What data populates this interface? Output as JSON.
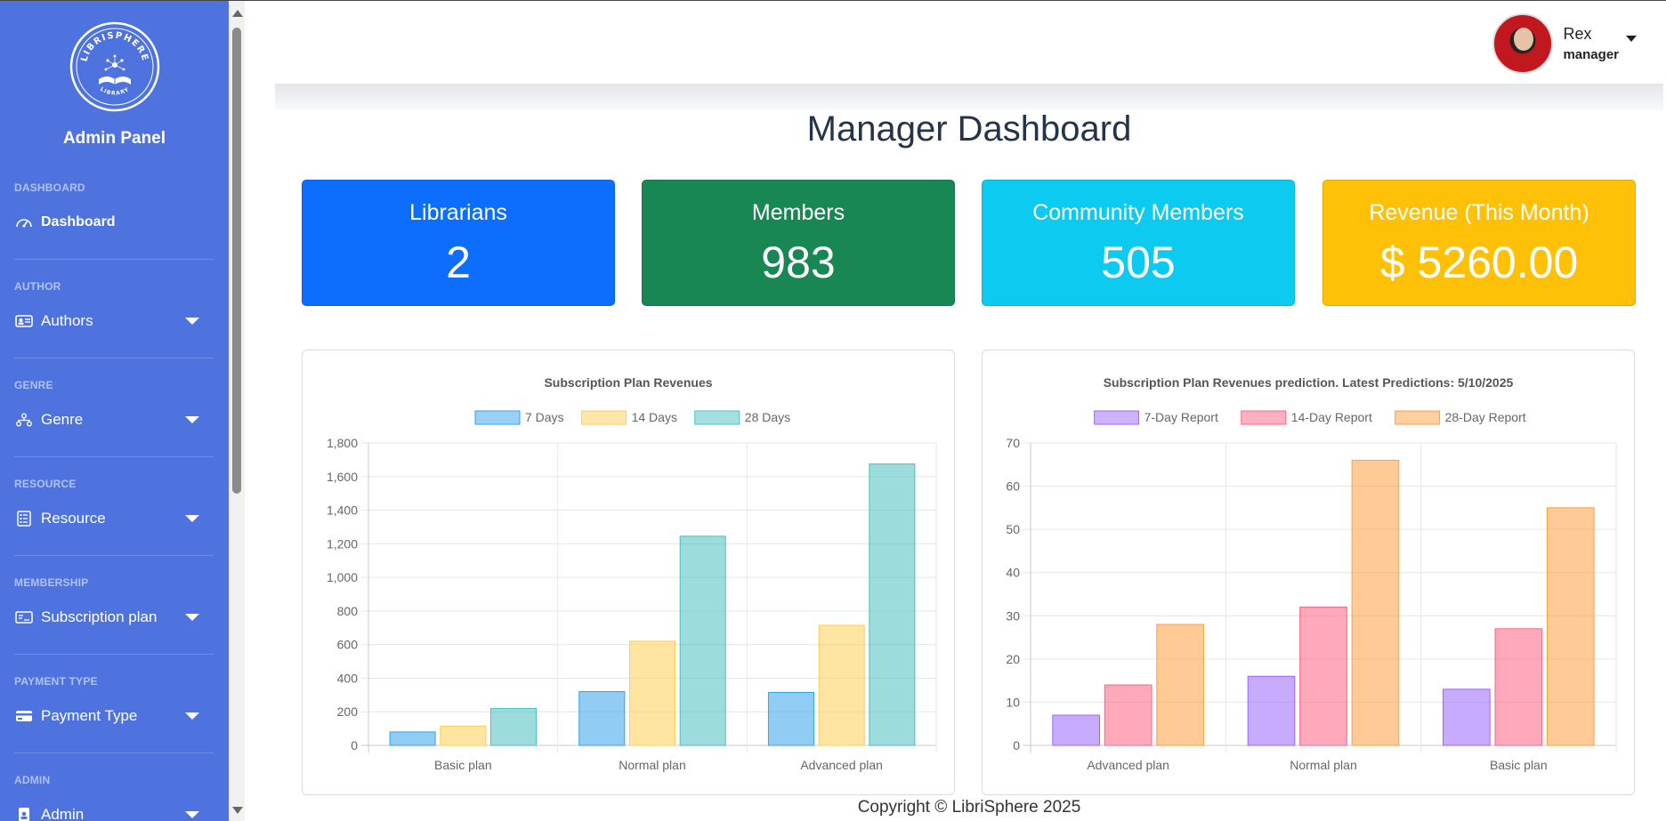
{
  "sidebar": {
    "title": "Admin Panel",
    "logo_text_top": "LIBRISPHERE",
    "logo_text_bottom": "LIBRARY",
    "sections": [
      {
        "heading": "DASHBOARD",
        "item": "Dashboard",
        "icon": "speedometer-icon",
        "active": true
      },
      {
        "heading": "AUTHOR",
        "item": "Authors",
        "icon": "id-card-icon"
      },
      {
        "heading": "GENRE",
        "item": "Genre",
        "icon": "diagram-icon"
      },
      {
        "heading": "RESOURCE",
        "item": "Resource",
        "icon": "list-document-icon"
      },
      {
        "heading": "MEMBERSHIP",
        "item": "Subscription plan",
        "icon": "membership-card-icon"
      },
      {
        "heading": "PAYMENT TYPE",
        "item": "Payment Type",
        "icon": "credit-card-icon"
      },
      {
        "heading": "ADMIN",
        "item": "Admin",
        "icon": "person-badge-icon"
      }
    ]
  },
  "user": {
    "name": "Rex",
    "role": "manager"
  },
  "page": {
    "title": "Manager Dashboard"
  },
  "cards": [
    {
      "title": "Librarians",
      "value": "2",
      "color": "#0d6efd"
    },
    {
      "title": "Members",
      "value": "983",
      "color": "#198754"
    },
    {
      "title": "Community Members",
      "value": "505",
      "color": "#0dcaf0"
    },
    {
      "title": "Revenue (This Month)",
      "value": "$ 5260.00",
      "color": "#ffc107"
    }
  ],
  "chart_data": [
    {
      "type": "bar",
      "title": "Subscription Plan Revenues",
      "categories": [
        "Basic plan",
        "Normal plan",
        "Advanced plan"
      ],
      "series": [
        {
          "name": "7 Days",
          "values": [
            80,
            320,
            315
          ],
          "color": "#36a2eb"
        },
        {
          "name": "14 Days",
          "values": [
            115,
            620,
            715
          ],
          "color": "#ffcd56"
        },
        {
          "name": "28 Days",
          "values": [
            220,
            1245,
            1675
          ],
          "color": "#4bc0c0"
        }
      ],
      "ylim": [
        0,
        1800
      ],
      "yticks": [
        "0",
        "200",
        "400",
        "600",
        "800",
        "1,000",
        "1,200",
        "1,400",
        "1,600",
        "1,800"
      ],
      "legend": "top",
      "grid": true
    },
    {
      "type": "bar",
      "title": "Subscription Plan Revenues prediction. Latest Predictions: 5/10/2025",
      "categories": [
        "Advanced plan",
        "Normal plan",
        "Basic plan"
      ],
      "series": [
        {
          "name": "7-Day Report",
          "values": [
            7,
            16,
            13
          ],
          "color": "#9966ff"
        },
        {
          "name": "14-Day Report",
          "values": [
            14,
            32,
            27
          ],
          "color": "#ff6384"
        },
        {
          "name": "28-Day Report",
          "values": [
            28,
            66,
            55
          ],
          "color": "#ff9f40"
        }
      ],
      "ylim": [
        0,
        70
      ],
      "yticks": [
        "0",
        "10",
        "20",
        "30",
        "40",
        "50",
        "60",
        "70"
      ],
      "legend": "top",
      "grid": true
    }
  ],
  "footer": {
    "text": "Copyright © LibriSphere 2025"
  }
}
